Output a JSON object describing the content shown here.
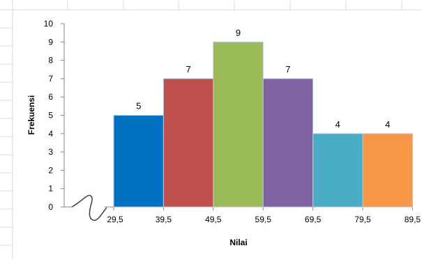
{
  "chart_data": {
    "type": "bar",
    "title": "",
    "xlabel": "Nilai",
    "ylabel": "Frekuensi",
    "bin_edges": [
      "29,5",
      "39,5",
      "49,5",
      "59,5",
      "69,5",
      "79,5",
      "89,5"
    ],
    "bin_edge_values": [
      29.5,
      39.5,
      49.5,
      59.5,
      69.5,
      79.5,
      89.5
    ],
    "values": [
      5,
      7,
      9,
      7,
      4,
      4
    ],
    "data_labels": [
      "5",
      "7",
      "9",
      "7",
      "4",
      "4"
    ],
    "bar_colors": [
      "#0070c0",
      "#c0504d",
      "#9bbb59",
      "#8064a2",
      "#4bacc6",
      "#f79646"
    ],
    "ylim": [
      0,
      10
    ],
    "yticks": [
      "0",
      "1",
      "2",
      "3",
      "4",
      "5",
      "6",
      "7",
      "8",
      "9",
      "10"
    ],
    "axis_break": true,
    "grid": false,
    "legend": "none"
  }
}
